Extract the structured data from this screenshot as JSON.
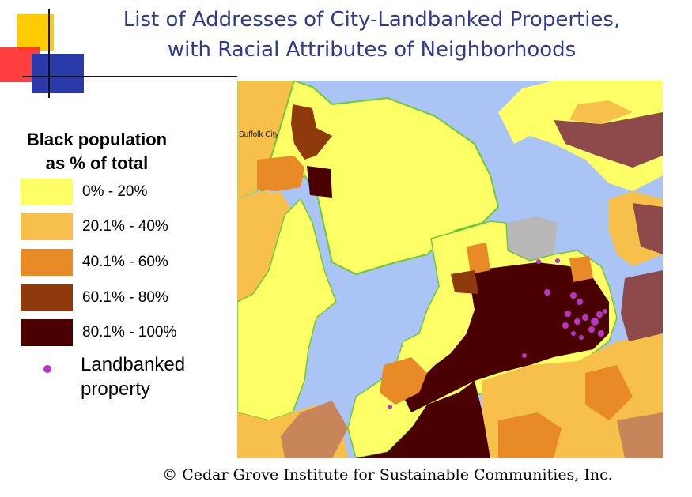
{
  "title": {
    "line1": "List of Addresses of City-Landbanked Properties,",
    "line2": "with Racial Attributes of Neighborhoods"
  },
  "legend": {
    "title_line1": "Black population",
    "title_line2": "as % of total",
    "classes": [
      {
        "label": "0% - 20%",
        "color": "#ffff66"
      },
      {
        "label": "20.1% - 40%",
        "color": "#f7c04a"
      },
      {
        "label": "40.1% - 60%",
        "color": "#e88a26"
      },
      {
        "label": "60.1% - 80%",
        "color": "#8e3a0c"
      },
      {
        "label": "80.1% - 100%",
        "color": "#4a0000"
      }
    ],
    "landbanked": {
      "label": "Landbanked\nproperty",
      "color": "#b536c8"
    }
  },
  "map": {
    "place_label": "Suffolk City",
    "water_color": "#a9c4f5",
    "no_data_color": "#b8b8b8"
  },
  "copyright": "© Cedar Grove Institute for Sustainable Communities, Inc."
}
